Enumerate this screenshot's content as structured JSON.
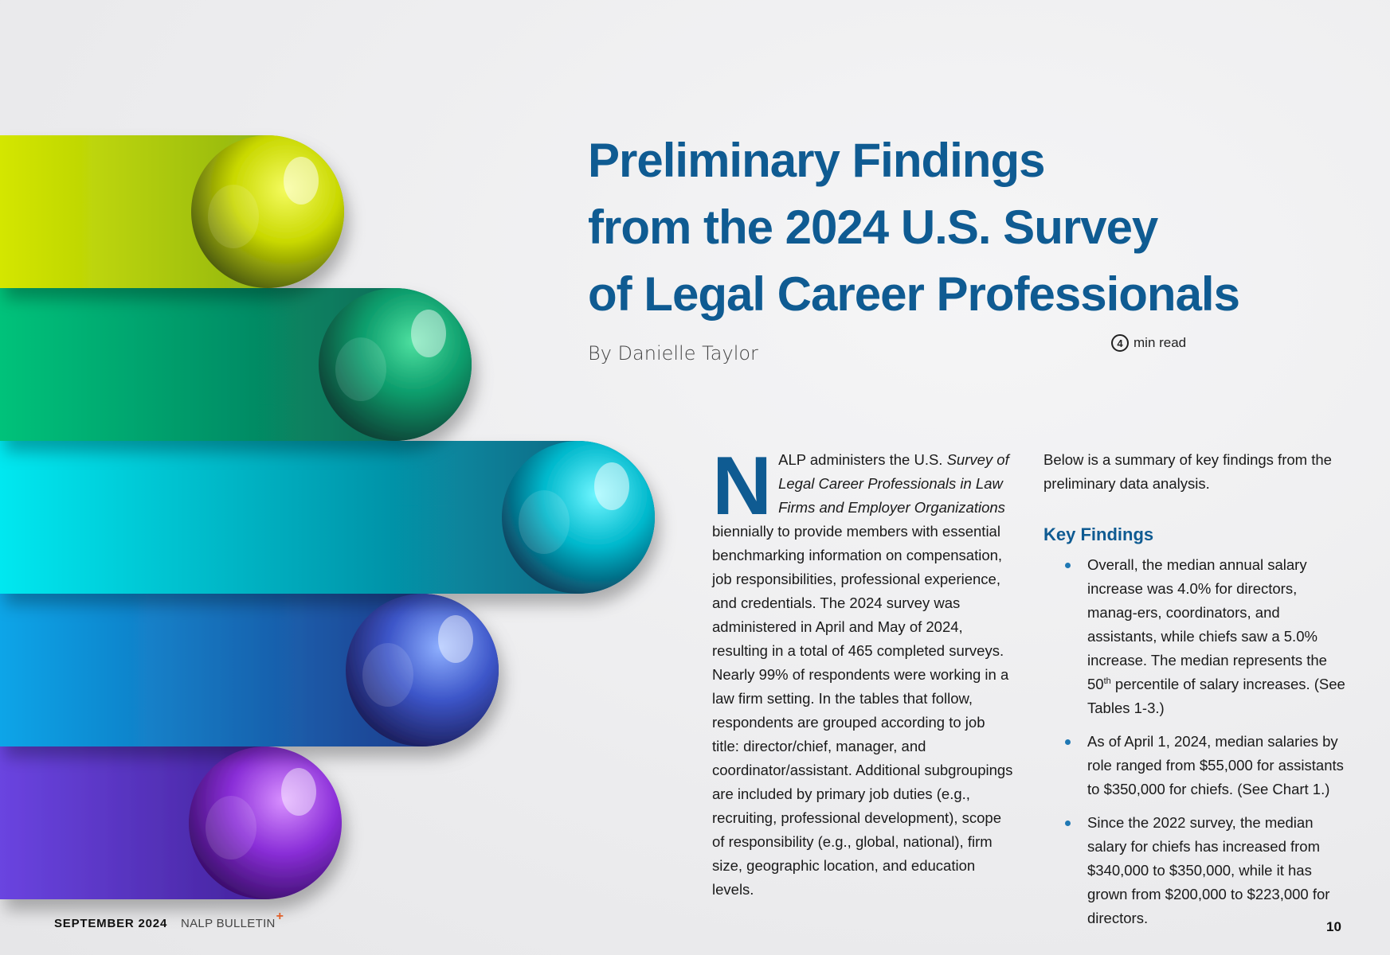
{
  "article": {
    "title_lines": [
      "Preliminary Findings",
      "from the 2024 U.S. Survey",
      "of Legal Career Professionals"
    ],
    "byline": "By Danielle Taylor",
    "read_time_number": "4",
    "read_time_label": "min read"
  },
  "intro": {
    "dropcap": "N",
    "text_1": "ALP administers the U.S. ",
    "italic": "Survey of Legal Career Professionals in Law Firms and Employer Organizations",
    "text_2": " biennially to provide members with essential benchmarking information on compensation, job responsibilities, professional experience, and credentials. The 2024 survey was administered in April and May of 2024, resulting in a total of 465 completed surveys. Nearly 99% of respondents were working in a law firm setting. In the tables that follow, respondents are grouped according to job title: director/chief, manager, and coordinator/assistant. Additional subgroupings are included by primary job duties (e.g., recruiting, professional development), scope of responsibility (e.g., global, national), firm size, geographic location, and education levels."
  },
  "summary": {
    "lead": "Below is a summary of key findings from the preliminary data analysis.",
    "heading": "Key Findings",
    "finding_1_a": "Overall, the median annual salary increase was 4.0% for directors, manag-ers, coordinators, and assistants, while chiefs saw a 5.0% increase. The median represents the 50",
    "finding_1_sup": "th",
    "finding_1_b": " percentile of salary increases. (See Tables 1-3.)",
    "finding_2": "As of April 1, 2024, median salaries by role ranged from $55,000 for assistants to $350,000 for chiefs. (See Chart 1.)",
    "finding_3": "Since the 2022 survey, the median salary for chiefs has increased from $340,000 to $350,000, while it has grown from $200,000 to $223,000 for directors."
  },
  "footer": {
    "date": "SEPTEMBER  2024",
    "publication": "NALP BULLETIN",
    "plus": "+",
    "page": "10"
  },
  "colors": {
    "accent": "#0f5b92",
    "bullet": "#1f78b4",
    "plus": "#e0602a"
  },
  "artwork": {
    "bands": [
      "yellow-green",
      "green",
      "cyan",
      "blue",
      "violet"
    ]
  }
}
